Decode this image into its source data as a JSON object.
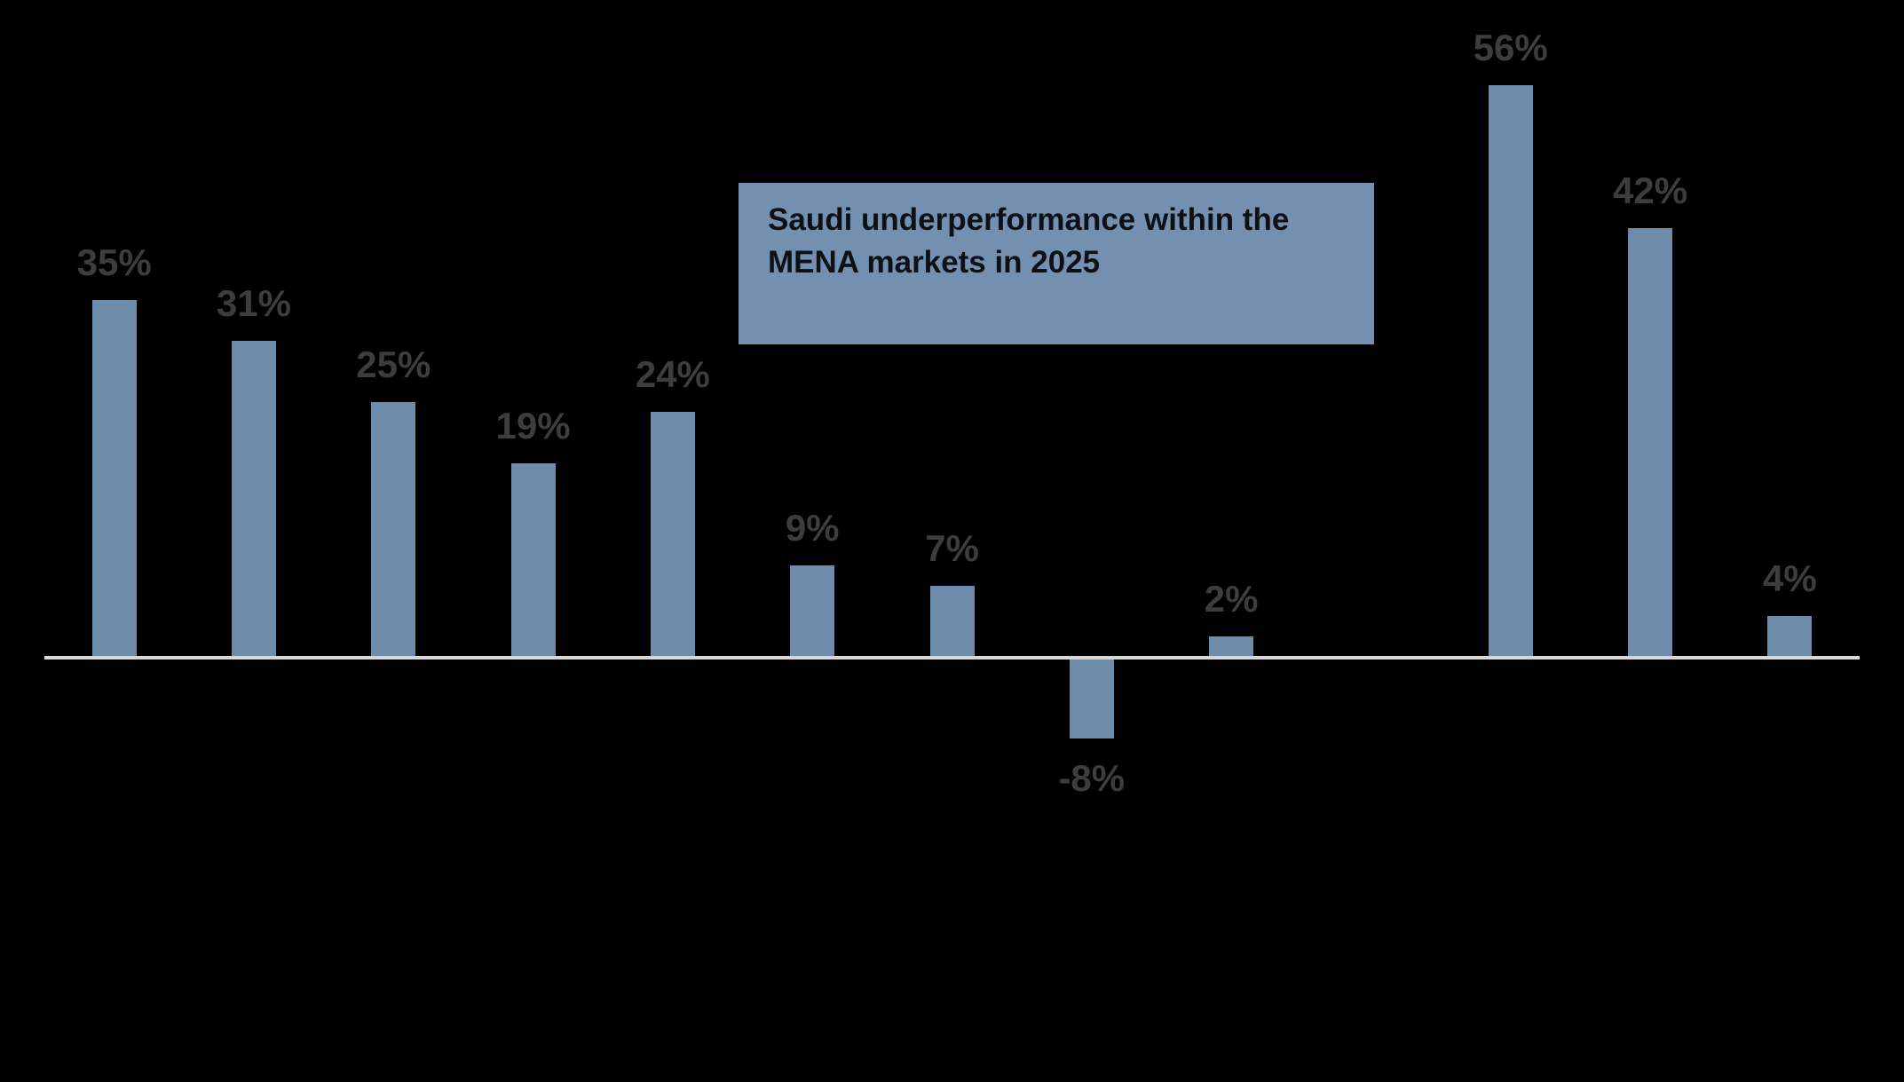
{
  "page": {
    "background_color": "#000000"
  },
  "chart_data": {
    "type": "bar",
    "categories": [
      "",
      "",
      "",
      "",
      "",
      "",
      "",
      "",
      "",
      "",
      "",
      "",
      ""
    ],
    "values": [
      35,
      31,
      25,
      19,
      24,
      9,
      7,
      -8,
      2,
      null,
      56,
      42,
      4
    ],
    "data_labels": [
      "35%",
      "31%",
      "25%",
      "19%",
      "24%",
      "9%",
      "7%",
      "-8%",
      "2%",
      null,
      "56%",
      "42%",
      "4%"
    ],
    "title": "",
    "xlabel": "",
    "ylabel": "",
    "ylim": [
      -8,
      56
    ],
    "grid": false,
    "legend": false,
    "axis": {
      "baseline_visible": true,
      "baseline_color": "#D8D8D8"
    },
    "colors": {
      "bar": "#6D8CAC",
      "data_label": "#3D3D3D",
      "annotation_background": "#7390B0",
      "annotation_text": "#0D1014",
      "background": "#000000"
    },
    "annotation": {
      "lines": [
        "Saudi underperformance within the",
        "MENA markets in 2025"
      ],
      "text": "Saudi underperformance within the MENA markets in 2025"
    }
  }
}
